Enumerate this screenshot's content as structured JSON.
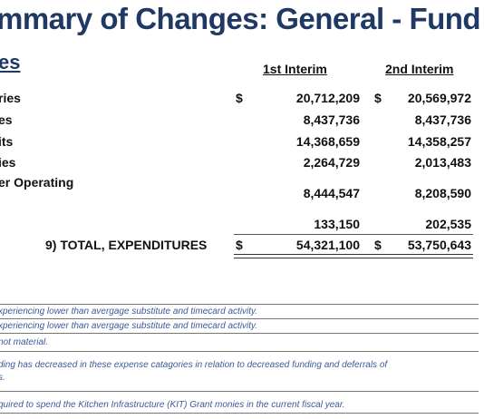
{
  "page": {
    "title": "mmary of Changes: General - Fund",
    "section_heading": "es"
  },
  "table": {
    "columns": [
      "1st Interim",
      "2nd Interim"
    ],
    "rows": [
      {
        "label": "ries",
        "currency1": "$",
        "v1": "20,712,209",
        "currency2": "$",
        "v2": "20,569,972"
      },
      {
        "label": "es",
        "v1": "8,437,736",
        "v2": "8,437,736"
      },
      {
        "label": "its",
        "v1": "14,368,659",
        "v2": "14,358,257"
      },
      {
        "label": "ies",
        "v1": "2,264,729",
        "v2": "2,013,483"
      },
      {
        "label": "er Operating",
        "v1": "8,444,547",
        "v2": "8,208,590"
      },
      {
        "label": "",
        "v1": "133,150",
        "v2": "202,535"
      }
    ],
    "total": {
      "label": "9) TOTAL, EXPENDITURES",
      "currency1": "$",
      "v1": "54,321,100",
      "currency2": "$",
      "v2": "53,750,643"
    }
  },
  "notes": [
    "xperiencing lower than avergage substitute and timecard activity.",
    "xperiencing lower than avergage substitute and timecard activity.",
    "not material.",
    "ding has decreased in these expense catagories in relation to decreased funding and deferrals of",
    "s.",
    "quired to spend the Kitchen Infrastructure (KIT) Grant monies in the current fiscal year."
  ]
}
